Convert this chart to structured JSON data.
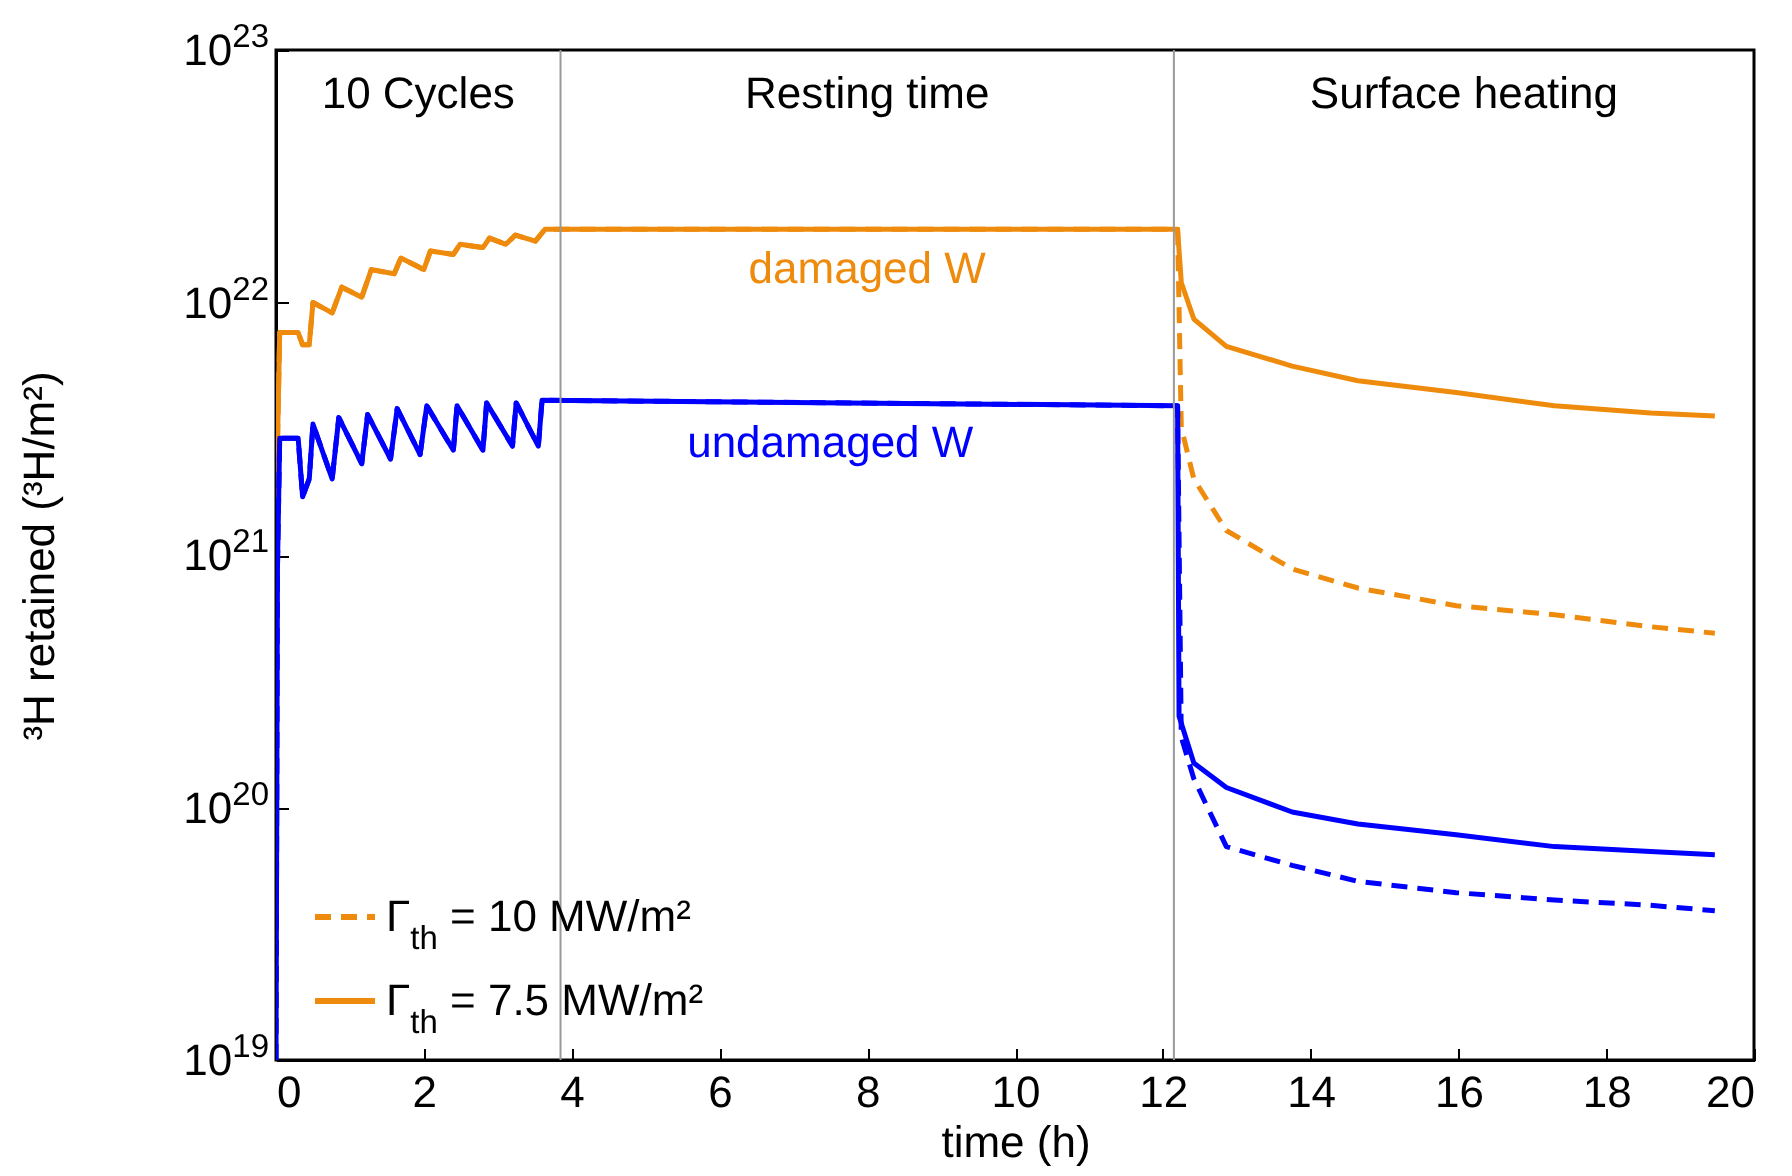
{
  "chart_data": {
    "type": "line",
    "xlabel": "time (h)",
    "ylabel": "³H retained (³H/m²)",
    "log": "y",
    "xlim": [
      0,
      20
    ],
    "xticks": [
      0,
      2,
      4,
      6,
      8,
      10,
      12,
      14,
      16,
      18,
      20
    ],
    "ylim": [
      1e+19,
      1e+23
    ],
    "yticks": [
      {
        "value": 1e+19,
        "label": "10$^{19}$"
      },
      {
        "value": 1e+20,
        "label": "10$^{20}$"
      },
      {
        "value": 1e+21,
        "label": "10$^{21}$"
      },
      {
        "value": 1e+22,
        "label": "10$^{22}$"
      },
      {
        "value": 1e+23,
        "label": "10$^{23}$"
      }
    ],
    "legend": "bottom left",
    "grid": false,
    "series": [
      {
        "name": "Γ$_{th}$ = 10 MW/m²",
        "color": "#ee8a0c",
        "line_style": "dashed",
        "x": [
          0,
          0.05,
          0.3,
          0.36,
          0.45,
          0.5,
          0.76,
          0.89,
          1.16,
          1.29,
          1.6,
          1.69,
          2.0,
          2.09,
          2.4,
          2.49,
          2.8,
          2.89,
          3.11,
          3.24,
          3.51,
          3.64,
          12.2,
          12.25,
          12.42,
          12.86,
          13.75,
          14.64,
          15.97,
          17.3,
          18.6,
          19.47
        ],
        "values": [
          1.4e+21,
          7.6e+21,
          7.6e+21,
          6.8e+21,
          6.8e+21,
          1e+22,
          9.1e+21,
          1.15e+22,
          1.05e+22,
          1.35e+22,
          1.3e+22,
          1.5e+22,
          1.35e+22,
          1.6e+22,
          1.55e+22,
          1.7e+22,
          1.65e+22,
          1.8e+22,
          1.7e+22,
          1.85e+22,
          1.75e+22,
          1.95e+22,
          1.95e+22,
          3.2e+21,
          2e+21,
          1.25e+21,
          8.8e+20,
          7.4e+20,
          6.3e+20,
          5.8e+20,
          5.2e+20,
          4.9e+20
        ]
      },
      {
        "name": "Γ$_{th}$ = 7.5 MW/m²",
        "color": "#ee8a0c",
        "line_style": "solid",
        "x": [
          0,
          0.05,
          0.3,
          0.36,
          0.45,
          0.5,
          0.76,
          0.89,
          1.16,
          1.29,
          1.6,
          1.69,
          2.0,
          2.09,
          2.4,
          2.49,
          2.8,
          2.89,
          3.11,
          3.24,
          3.51,
          3.64,
          12.2,
          12.25,
          12.42,
          12.86,
          13.75,
          14.64,
          15.97,
          17.3,
          18.6,
          19.47
        ],
        "values": [
          1.4e+21,
          7.6e+21,
          7.6e+21,
          6.8e+21,
          6.8e+21,
          1e+22,
          9.1e+21,
          1.15e+22,
          1.05e+22,
          1.35e+22,
          1.3e+22,
          1.5e+22,
          1.35e+22,
          1.6e+22,
          1.55e+22,
          1.7e+22,
          1.65e+22,
          1.8e+22,
          1.7e+22,
          1.85e+22,
          1.75e+22,
          1.95e+22,
          1.95e+22,
          1.2e+22,
          8.6e+21,
          6.7e+21,
          5.6e+21,
          4.9e+21,
          4.4e+21,
          3.9e+21,
          3.65e+21,
          3.55e+21
        ]
      },
      {
        "color": "#0000ff",
        "line_style": "dashed",
        "x": [
          0,
          0.02,
          0.05,
          0.3,
          0.36,
          0.45,
          0.5,
          0.76,
          0.85,
          1.16,
          1.24,
          1.55,
          1.64,
          1.95,
          2.04,
          2.4,
          2.45,
          2.8,
          2.85,
          3.2,
          3.25,
          3.55,
          3.6,
          12.2,
          12.25,
          12.42,
          12.86,
          13.75,
          14.64,
          15.97,
          17.3,
          18.6,
          19.47
        ],
        "values": [
          1e+19,
          9e+20,
          2.9e+21,
          2.9e+21,
          1.7e+21,
          2e+21,
          3.3e+21,
          2e+21,
          3.5e+21,
          2.3e+21,
          3.6e+21,
          2.4e+21,
          3.8e+21,
          2.5e+21,
          3.9e+21,
          2.6e+21,
          3.9e+21,
          2.6e+21,
          4e+21,
          2.7e+21,
          4e+21,
          2.7e+21,
          4.1e+21,
          3.9e+21,
          1.9e+20,
          1.3e+20,
          7e+19,
          5.9e+19,
          5.1e+19,
          4.6e+19,
          4.3e+19,
          4.1e+19,
          3.9e+19
        ]
      },
      {
        "color": "#0000ff",
        "line_style": "solid",
        "x": [
          0,
          0.02,
          0.05,
          0.3,
          0.36,
          0.45,
          0.5,
          0.76,
          0.85,
          1.16,
          1.24,
          1.55,
          1.64,
          1.95,
          2.04,
          2.4,
          2.45,
          2.8,
          2.85,
          3.2,
          3.25,
          3.55,
          3.6,
          12.2,
          12.22,
          12.42,
          12.86,
          13.75,
          14.64,
          15.97,
          17.3,
          18.6,
          19.47
        ],
        "values": [
          1e+19,
          9e+20,
          2.9e+21,
          2.9e+21,
          1.7e+21,
          2e+21,
          3.3e+21,
          2e+21,
          3.5e+21,
          2.3e+21,
          3.6e+21,
          2.4e+21,
          3.8e+21,
          2.5e+21,
          3.9e+21,
          2.6e+21,
          3.9e+21,
          2.6e+21,
          4e+21,
          2.7e+21,
          4e+21,
          2.7e+21,
          4.1e+21,
          3.9e+21,
          2.3e+20,
          1.5e+20,
          1.2e+20,
          9.6e+19,
          8.6e+19,
          7.8e+19,
          7e+19,
          6.7e+19,
          6.5e+19
        ]
      }
    ],
    "ref_lines": [
      {
        "axis": "x",
        "value": 3.85,
        "color": "#999999"
      },
      {
        "axis": "x",
        "value": 12.15,
        "color": "#999999"
      }
    ],
    "annotations": [
      "10 Cycles",
      "Resting time",
      "Surface heating",
      {
        "text": "damaged W",
        "x": 8,
        "y": 1.95e+22
      },
      {
        "text": "undamaged W",
        "x": 7.5,
        "y": 4e+21
      }
    ]
  }
}
